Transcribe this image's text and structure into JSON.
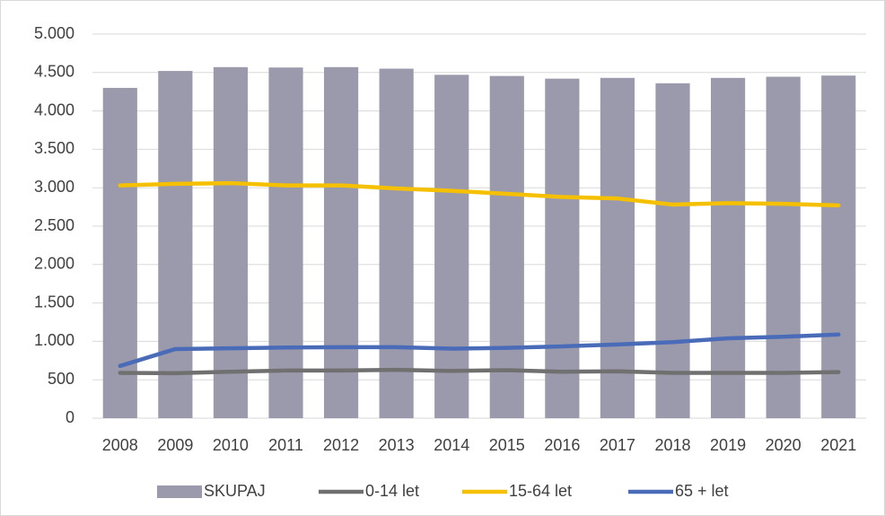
{
  "chart_data": {
    "type": "bar-line",
    "categories": [
      "2008",
      "2009",
      "2010",
      "2011",
      "2012",
      "2013",
      "2014",
      "2015",
      "2016",
      "2017",
      "2018",
      "2019",
      "2020",
      "2021"
    ],
    "series": [
      {
        "name": "SKUPAJ",
        "type": "bar",
        "color": "#9a9aac",
        "values": [
          4300,
          4520,
          4570,
          4565,
          4570,
          4550,
          4470,
          4455,
          4420,
          4430,
          4360,
          4430,
          4445,
          4460
        ]
      },
      {
        "name": "0-14 let",
        "type": "line",
        "color": "#707070",
        "values": [
          590,
          585,
          605,
          620,
          620,
          630,
          615,
          625,
          605,
          610,
          590,
          590,
          590,
          600
        ]
      },
      {
        "name": "15-64 let",
        "type": "line",
        "color": "#f5c000",
        "values": [
          3030,
          3050,
          3060,
          3030,
          3030,
          2990,
          2960,
          2920,
          2880,
          2860,
          2780,
          2800,
          2790,
          2770
        ]
      },
      {
        "name": "65 + let",
        "type": "line",
        "color": "#4a6bb8",
        "values": [
          680,
          900,
          910,
          920,
          925,
          925,
          905,
          915,
          935,
          960,
          990,
          1040,
          1060,
          1090
        ]
      }
    ],
    "ylim": [
      0,
      5000
    ],
    "yticks": [
      0,
      500,
      {
        "value": 1000,
        "label": "1.000"
      },
      {
        "value": 1500,
        "label": "1.500"
      },
      {
        "value": 2000,
        "label": "2.000"
      },
      {
        "value": 2500,
        "label": "2.500"
      },
      {
        "value": 3000,
        "label": "3.000"
      },
      {
        "value": 3500,
        "label": "3.500"
      },
      {
        "value": 4000,
        "label": "4.000"
      },
      {
        "value": 4500,
        "label": "4.500"
      },
      {
        "value": 5000,
        "label": "5.000"
      }
    ],
    "grid": true,
    "legend": "bottom"
  }
}
